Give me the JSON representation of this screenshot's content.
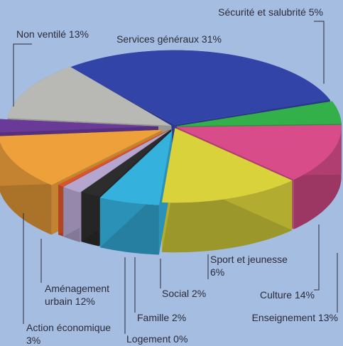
{
  "chart_data": {
    "type": "pie",
    "style": "exploded 3d pie",
    "slices": [
      {
        "key": "services",
        "label": "Services généraux 31%",
        "value": 31,
        "color": "#3344a8"
      },
      {
        "key": "securite",
        "label": "Sécurité et salubrité 5%",
        "value": 5,
        "color": "#33b04a"
      },
      {
        "key": "enseignement",
        "label": "Enseignement 13%",
        "value": 13,
        "color": "#d84c8a"
      },
      {
        "key": "culture",
        "label": "Culture 14%",
        "value": 14,
        "color": "#d9d23a"
      },
      {
        "key": "sport",
        "label_lines": [
          "Sport et jeunesse",
          "6%"
        ],
        "value": 6,
        "color": "#35b1de"
      },
      {
        "key": "social",
        "label": "Social 2%",
        "value": 2,
        "color": "#2d2d2d"
      },
      {
        "key": "famille",
        "label": "Famille 2%",
        "value": 2,
        "color": "#b6a6cf"
      },
      {
        "key": "logement",
        "label": "Logement 0%",
        "value": 0,
        "color": "#d9552b"
      },
      {
        "key": "amenagement",
        "label_lines": [
          "Aménagement",
          "urbain 12%"
        ],
        "value": 12,
        "color": "#eea03a"
      },
      {
        "key": "action",
        "label_lines": [
          "Action économique",
          "3%"
        ],
        "value": 3,
        "color": "#6a3a98"
      },
      {
        "key": "nonventile",
        "label": "Non ventilé 13%",
        "value": 13,
        "color": "#b8b8b4"
      }
    ]
  }
}
